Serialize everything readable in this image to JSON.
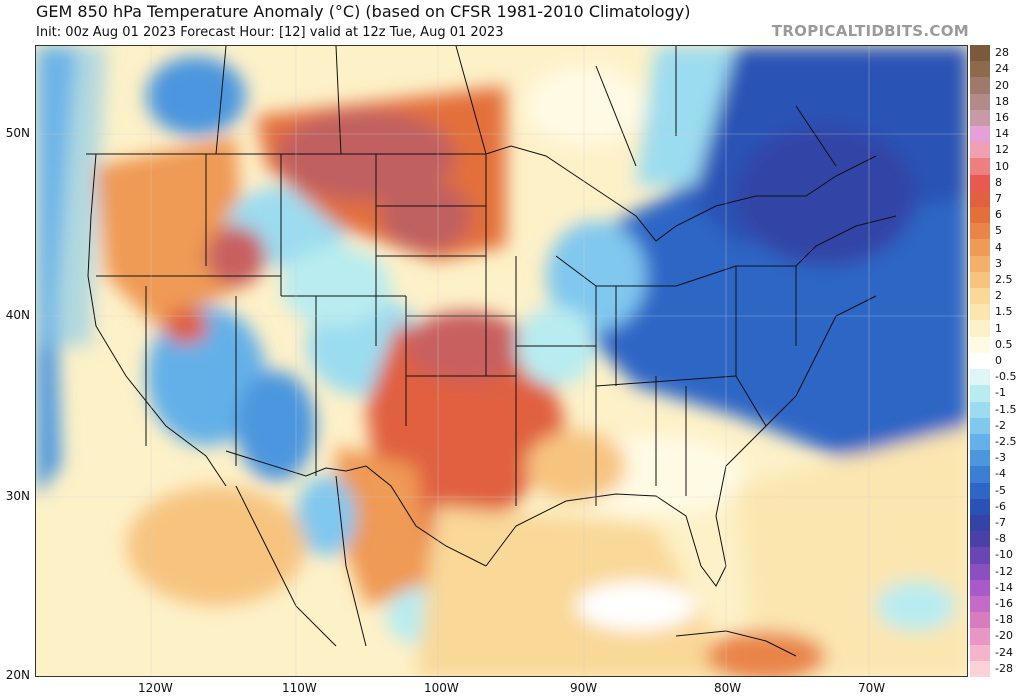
{
  "header": {
    "title": "GEM 850 hPa Temperature Anomaly (°C) (based on CFSR 1981-2010 Climatology)",
    "subtitle": "Init: 00z Aug 01 2023   Forecast Hour: [12]   valid at 12z Tue, Aug 01 2023",
    "brand": "TROPICALTIDBITS.COM"
  },
  "axes": {
    "lat_labels": [
      "50N",
      "40N",
      "30N",
      "20N"
    ],
    "lon_labels": [
      "120W",
      "110W",
      "100W",
      "90W",
      "80W",
      "70W"
    ]
  },
  "colorbar": {
    "labels": [
      "28",
      "24",
      "20",
      "18",
      "16",
      "14",
      "12",
      "10",
      "8",
      "7",
      "6",
      "5",
      "4",
      "3",
      "2.5",
      "2",
      "1.5",
      "1",
      "0.5",
      "0",
      "-0.5",
      "-1",
      "-1.5",
      "-2",
      "-2.5",
      "-3",
      "-4",
      "-5",
      "-6",
      "-7",
      "-8",
      "-10",
      "-12",
      "-14",
      "-16",
      "-18",
      "-20",
      "-24",
      "-28"
    ],
    "colors": [
      "#7a5a3a",
      "#8c6a4a",
      "#9f7a6a",
      "#b38a8a",
      "#c89aa8",
      "#e6a0d8",
      "#f0a0b0",
      "#ee7f80",
      "#e85a50",
      "#e06040",
      "#e3703a",
      "#e9844a",
      "#ef9a55",
      "#f4b06a",
      "#f7c480",
      "#f9d898",
      "#fbe6b0",
      "#fdf1c8",
      "#fffae4",
      "#ffffff",
      "#dff6f6",
      "#b8ecf0",
      "#9cdcf0",
      "#80c8ee",
      "#64b0e8",
      "#4c96de",
      "#3c7ed4",
      "#2f66c6",
      "#2a52b6",
      "#3344a6",
      "#4a40a8",
      "#6a46b4",
      "#8a50c0",
      "#a85ac8",
      "#c46ac8",
      "#d87cc0",
      "#e896c4",
      "#f4b4cc",
      "#fcd2d8"
    ]
  }
}
